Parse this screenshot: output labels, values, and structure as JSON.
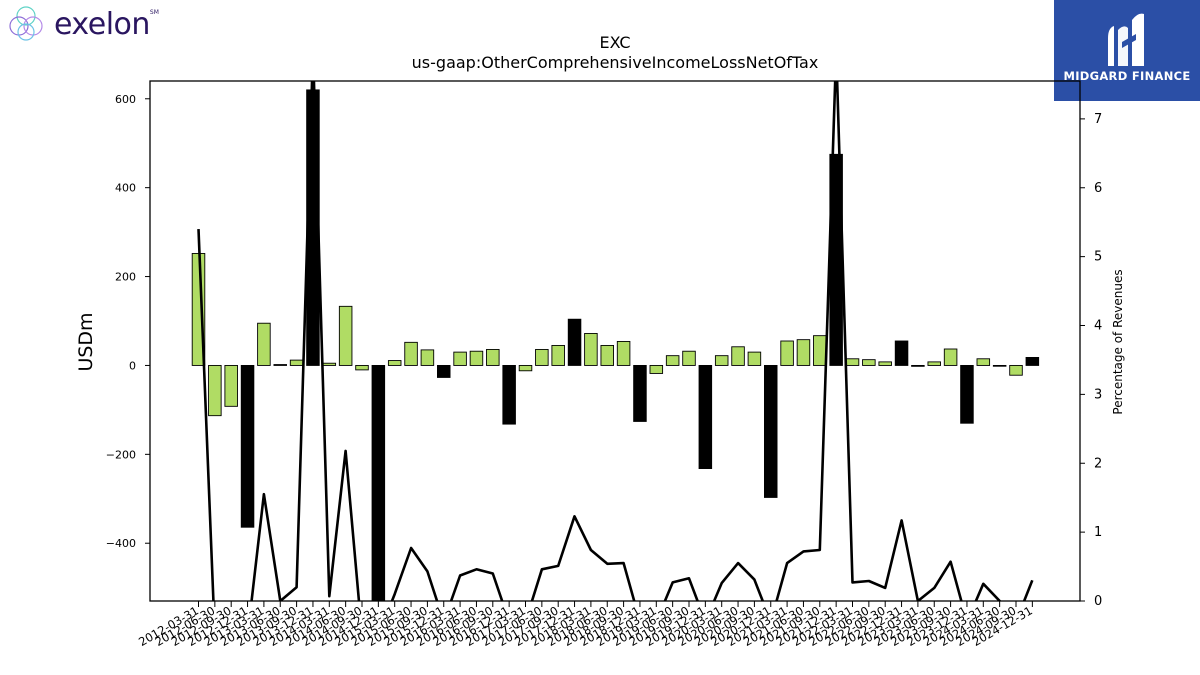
{
  "header": {
    "company_logo_text": "exelon",
    "company_logo_mark": "SM",
    "brand_logo_text": "MIDGARD FINANCE"
  },
  "colors": {
    "positive": "#b0dc64",
    "negative": "#000000",
    "line": "#000000"
  },
  "chart_data": {
    "type": "bar",
    "title": "EXC",
    "subtitle": "us-gaap:OtherComprehensiveIncomeLossNetOfTax",
    "ylabel": "USDm",
    "y2label": "Percentage of Revenues",
    "ylim": [
      -530,
      640
    ],
    "y2lim": [
      0,
      7.55
    ],
    "yticks": [
      600,
      400,
      200,
      0,
      -200,
      -400
    ],
    "ytick_labels": [
      "600",
      "400",
      "200",
      "0",
      "−200",
      "−400"
    ],
    "y2ticks": [
      7,
      6,
      5,
      4,
      3,
      2,
      1,
      0
    ],
    "y2tick_labels": [
      "7",
      "6",
      "5",
      "4",
      "3",
      "2",
      "1",
      "0"
    ],
    "categories": [
      "2012-03-31",
      "2012-06-30",
      "2012-09-30",
      "2012-12-31",
      "2013-03-31",
      "2013-06-30",
      "2013-09-30",
      "2013-12-31",
      "2014-03-31",
      "2014-06-30",
      "2014-09-30",
      "2014-12-31",
      "2015-03-31",
      "2015-06-30",
      "2015-09-30",
      "2015-12-31",
      "2016-03-31",
      "2016-06-30",
      "2016-09-30",
      "2016-12-31",
      "2017-03-31",
      "2017-06-30",
      "2017-09-30",
      "2017-12-31",
      "2018-03-31",
      "2018-06-30",
      "2018-09-30",
      "2018-12-31",
      "2019-03-31",
      "2019-06-30",
      "2019-09-30",
      "2019-12-31",
      "2020-03-31",
      "2020-06-30",
      "2020-09-30",
      "2020-12-31",
      "2021-03-31",
      "2021-06-30",
      "2021-09-30",
      "2021-12-31",
      "2022-03-31",
      "2022-06-30",
      "2022-09-30",
      "2022-12-31",
      "2023-03-31",
      "2023-06-30",
      "2023-09-30",
      "2023-12-31",
      "2024-03-31",
      "2024-06-30",
      "2024-09-30",
      "2024-12-31"
    ],
    "xtick_labels": [
      "2012-03-31",
      "2012-06-30",
      "2012-09-30",
      "2012-12-31",
      "2013-03-31",
      "2013-06-30",
      "2013-09-30",
      "2013-12-31",
      "2014-03-31",
      "2014-06-30",
      "2014-09-30",
      "2014-12-31",
      "2015-03-31",
      "2015-06-30",
      "2015-09-30",
      "2015-12-31",
      "2016-03-31",
      "2016-06-30",
      "2016-09-30",
      "2016-12-31",
      "2017-03-31",
      "2017-06-30",
      "2017-09-30",
      "2017-12-31",
      "2018-03-31",
      "2018-06-30",
      "2018-09-30",
      "2018-12-31",
      "2019-03-31",
      "2019-06-30",
      "2019-09-30",
      "2019-12-31",
      "2020-03-31",
      "2020-06-30",
      "2020-09-30",
      "2020-12-31",
      "2021-03-31",
      "2021-06-30",
      "2021-09-30",
      "2021-12-31",
      "2022-03-31",
      "2022-06-30",
      "2022-09-30",
      "2022-12-31",
      "2023-03-31",
      "2023-06-30",
      "2023-09-30",
      "2023-12-31",
      "2024-03-31",
      "2024-06-30",
      "2024-09-30",
      "2024-12-31"
    ],
    "series": [
      {
        "type": "bar",
        "axis": "left",
        "values": [
          252,
          -113,
          -92,
          -364,
          95,
          2,
          12,
          620,
          5,
          133,
          -10,
          -530,
          11,
          52,
          35,
          -27,
          30,
          32,
          36,
          -132,
          -12,
          36,
          45,
          104,
          72,
          45,
          54,
          -126,
          -18,
          22,
          32,
          -232,
          22,
          42,
          30,
          -297,
          55,
          58,
          67,
          475,
          15,
          13,
          8,
          55,
          -2,
          8,
          37,
          -130,
          15,
          -1,
          -22,
          18
        ]
      },
      {
        "type": "line",
        "axis": "right",
        "values": [
          5.4,
          -0.5,
          -0.5,
          -0.5,
          1.55,
          0.0,
          0.2,
          8.0,
          0.07,
          2.18,
          -0.5,
          -0.5,
          0.1,
          0.77,
          0.43,
          -0.3,
          0.37,
          0.46,
          0.4,
          -0.3,
          -0.3,
          0.46,
          0.51,
          1.23,
          0.74,
          0.54,
          0.55,
          -0.3,
          -0.3,
          0.27,
          0.33,
          -0.3,
          0.26,
          0.55,
          0.31,
          -0.3,
          0.55,
          0.72,
          0.74,
          8.0,
          0.27,
          0.29,
          0.19,
          1.17,
          0.0,
          0.19,
          0.57,
          -0.3,
          0.25,
          0.0,
          -0.3,
          0.3
        ]
      }
    ],
    "grid": false,
    "legend": "none"
  }
}
